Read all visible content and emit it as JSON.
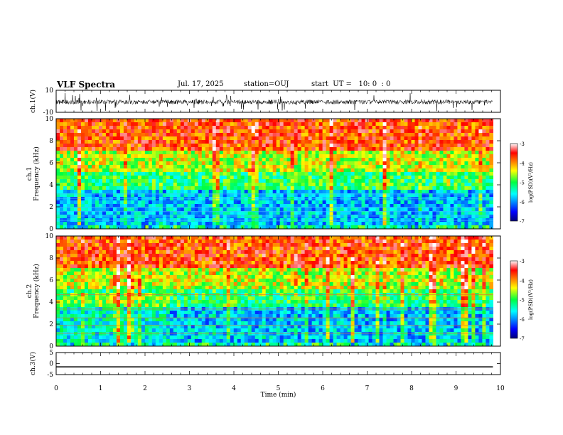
{
  "header": {
    "title": "VLF Spectra",
    "date": "Jul. 17, 2025",
    "station": "station=OUJ",
    "start_ut": "start  UT =   10: 0  : 0"
  },
  "chart_data": [
    {
      "type": "line",
      "panel": "ch1-waveform",
      "ylabel": "ch.1(V)",
      "ylim": [
        -10,
        10
      ],
      "yticks": [
        "10",
        "-10"
      ]
    },
    {
      "type": "heatmap",
      "panel": "ch1-spectrogram",
      "ylabel": "ch.1\nFrequency (kHz)",
      "ylim": [
        0,
        10
      ],
      "yticks": [
        "0",
        "2",
        "4",
        "6",
        "8",
        "10"
      ],
      "colorbar": {
        "label": "log(PSD)(V²/Hz)",
        "range": [
          -7,
          -3
        ],
        "ticks": [
          "-3",
          "-4",
          "-5",
          "-6",
          "-7"
        ]
      }
    },
    {
      "type": "heatmap",
      "panel": "ch2-spectrogram",
      "ylabel": "ch.2\nFrequency (kHz)",
      "ylim": [
        0,
        10
      ],
      "yticks": [
        "0",
        "2",
        "4",
        "6",
        "8",
        "10"
      ],
      "colorbar": {
        "label": "log(PSD)(V²/Hz)",
        "range": [
          -7,
          -3
        ],
        "ticks": [
          "-3",
          "-4",
          "-5",
          "-6",
          "-7"
        ]
      }
    },
    {
      "type": "line",
      "panel": "ch3-waveform",
      "ylabel": "ch.3(V)",
      "ylim": [
        -5,
        5
      ],
      "yticks": [
        "5",
        "0",
        "-5"
      ],
      "values_note": "flat at about -1.5 V"
    },
    {
      "type": "axis",
      "panel": "time-axis",
      "xlabel": "Time (min)",
      "xlim": [
        0,
        10
      ],
      "xticks": [
        "0",
        "1",
        "2",
        "3",
        "4",
        "5",
        "6",
        "7",
        "8",
        "9",
        "10"
      ],
      "data_end_min": 9.83
    }
  ]
}
